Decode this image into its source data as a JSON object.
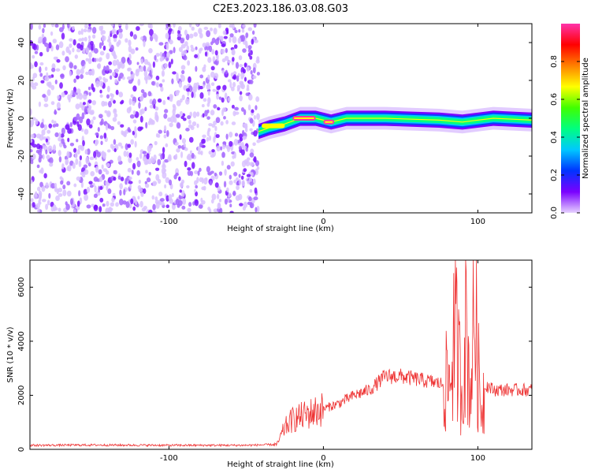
{
  "figure": {
    "title": "C2E3.2023.186.03.08.G03"
  },
  "chart_data": [
    {
      "type": "heatmap",
      "xlabel": "Height of straight line (km)",
      "ylabel": "Frequency (Hz)",
      "xlim": [
        -190,
        135
      ],
      "ylim": [
        -50,
        50
      ],
      "xticks": [
        -100,
        0,
        100
      ],
      "yticks": [
        -40,
        -20,
        0,
        20,
        40
      ],
      "colorbar": {
        "label": "Normalized spectral amplitude",
        "range": [
          0,
          1
        ],
        "ticks": [
          0.0,
          0.2,
          0.4,
          0.6,
          0.8
        ],
        "colormap": [
          "#e6d2ff",
          "#7a00ff",
          "#0033ff",
          "#00c8ff",
          "#00ff80",
          "#40ff00",
          "#ffff00",
          "#ff8000",
          "#ff0000",
          "#ff33aa"
        ]
      },
      "noise_region": {
        "x": [
          -190,
          -42
        ],
        "y": [
          -50,
          50
        ],
        "level": 0.1
      },
      "signal_trace": [
        {
          "x": -42,
          "y": -7
        },
        {
          "x": -35,
          "y": -5
        },
        {
          "x": -25,
          "y": -3
        },
        {
          "x": -15,
          "y": 0
        },
        {
          "x": -5,
          "y": 0
        },
        {
          "x": 5,
          "y": -2
        },
        {
          "x": 15,
          "y": 0
        },
        {
          "x": 40,
          "y": 0
        },
        {
          "x": 75,
          "y": -1
        },
        {
          "x": 90,
          "y": -2
        },
        {
          "x": 110,
          "y": 0
        },
        {
          "x": 135,
          "y": -1
        }
      ],
      "peak_segments": [
        {
          "x": [
            -20,
            -5
          ],
          "y": 0,
          "level": 0.95
        },
        {
          "x": [
            0,
            7
          ],
          "y": -2,
          "level": 0.95
        },
        {
          "x": [
            -40,
            -25
          ],
          "y": -4,
          "level": 0.7
        }
      ]
    },
    {
      "type": "line",
      "xlabel": "Height of straight line (km)",
      "ylabel": "SNR (10 * v/v)",
      "xlim": [
        -190,
        135
      ],
      "ylim": [
        0,
        7000
      ],
      "xticks": [
        -100,
        0,
        100
      ],
      "yticks": [
        0,
        2000,
        4000,
        6000
      ],
      "color": "#ee3333",
      "series": [
        {
          "x": [
            -190,
            -150,
            -100,
            -50,
            -30,
            -25,
            -20,
            -10,
            0,
            10,
            20,
            30,
            40,
            50,
            60,
            70,
            78,
            82,
            85,
            88,
            90,
            92,
            95,
            98,
            100,
            102,
            105,
            110,
            120,
            135
          ],
          "values": [
            150,
            160,
            150,
            150,
            180,
            800,
            1100,
            1300,
            1500,
            1700,
            2000,
            2200,
            2700,
            2700,
            2600,
            2500,
            2400,
            2500,
            4500,
            3000,
            2000,
            5000,
            2000,
            5500,
            3000,
            1500,
            2400,
            2200,
            2200,
            2200
          ]
        }
      ]
    }
  ]
}
